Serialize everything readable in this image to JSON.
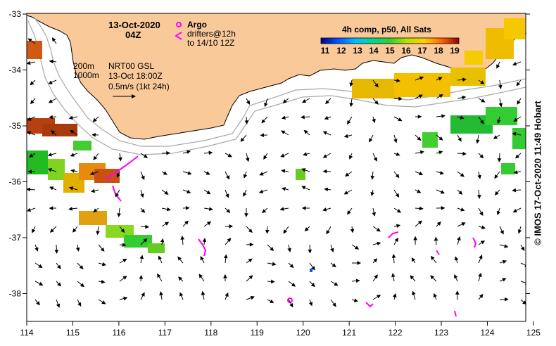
{
  "map": {
    "date": "13-Oct-2020",
    "time": "04Z",
    "argo_label": "Argo",
    "drifters_line1": "drifters@12h",
    "drifters_line2": "to 14/10 12Z",
    "contour_200": "200m",
    "contour_1000": "1000m",
    "product": "NRT00 GSL",
    "product_time": "13-Oct 18:00Z",
    "vector_scale": "0.5m/s (1kt 24h)",
    "colorbar_title": "4h comp, p50, All Sats",
    "colorbar_ticks": [
      "11",
      "12",
      "13",
      "14",
      "15",
      "16",
      "17",
      "18",
      "19"
    ],
    "credit": "© IMOS 17-Oct-2020 11:49 Hobart",
    "x_ticks": [
      "114",
      "115",
      "116",
      "117",
      "118",
      "119",
      "120",
      "121",
      "122",
      "123",
      "124",
      "125"
    ],
    "y_ticks": [
      "-33",
      "-34",
      "-35",
      "-36",
      "-37",
      "-38"
    ],
    "colors": {
      "land": "#f9c99a",
      "contour": "#a8a8a8",
      "drifter": "#ff00ff",
      "arrow": "#000000"
    }
  }
}
